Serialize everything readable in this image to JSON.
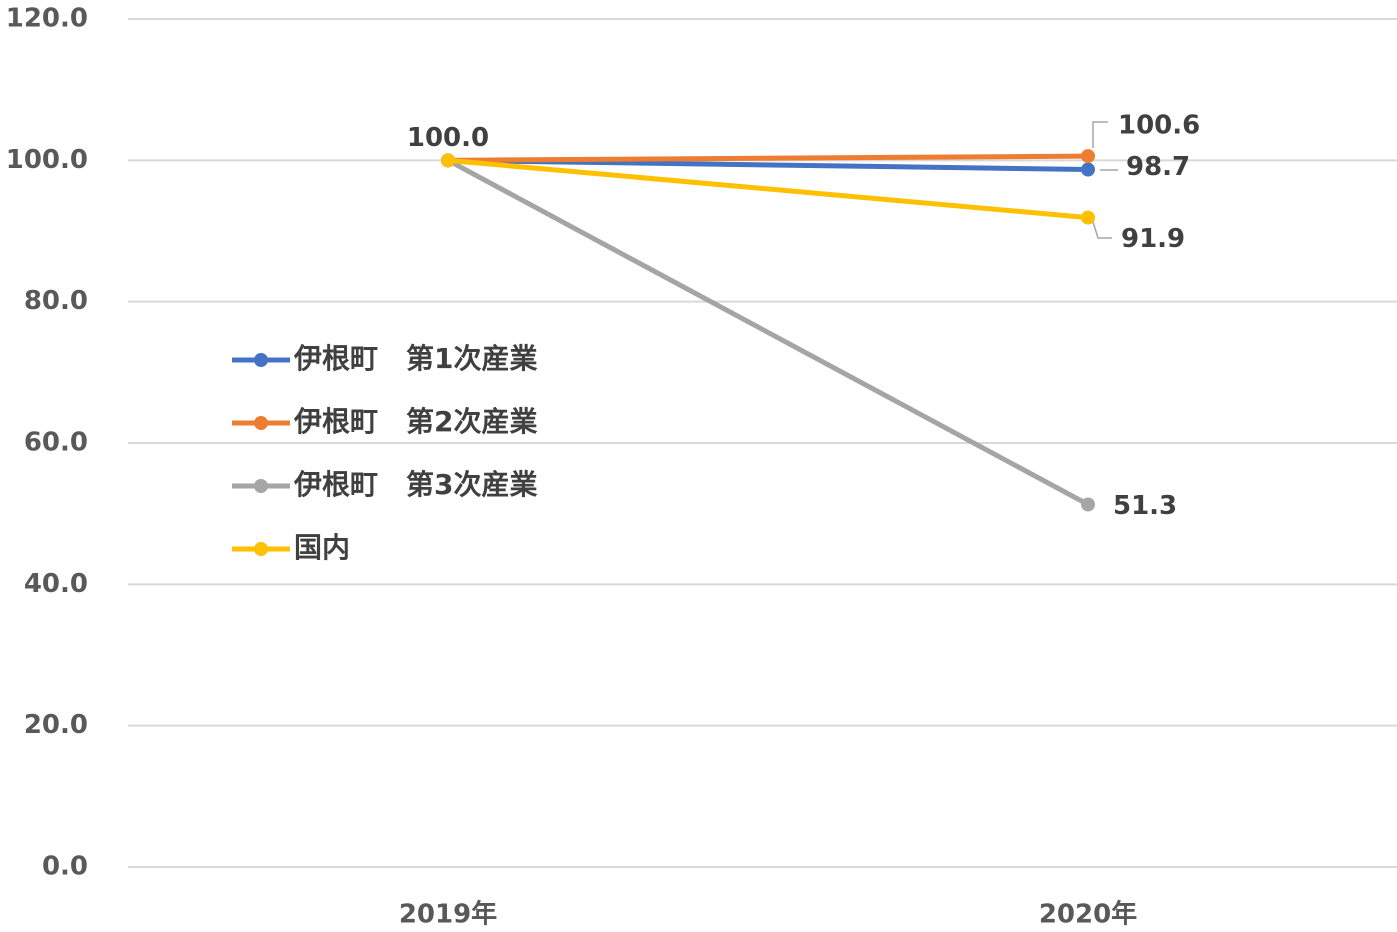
{
  "chart_data": {
    "type": "line",
    "categories": [
      "2019年",
      "2020年"
    ],
    "series": [
      {
        "name": "伊根町　第1次産業",
        "color": "#4472c4",
        "values": [
          100,
          98.7
        ],
        "value_labels": [
          "100.0",
          "98.7"
        ]
      },
      {
        "name": "伊根町　第2次産業",
        "color": "#ed7d31",
        "values": [
          100,
          100.6
        ],
        "value_labels": [
          null,
          "100.6"
        ]
      },
      {
        "name": "伊根町　第3次産業",
        "color": "#a5a5a5",
        "values": [
          100,
          51.3
        ],
        "value_labels": [
          null,
          "51.3"
        ]
      },
      {
        "name": "国内",
        "color": "#ffc000",
        "values": [
          100,
          91.9
        ],
        "value_labels": [
          null,
          "91.9"
        ]
      }
    ],
    "ylim": [
      0,
      120
    ],
    "yticks": [
      {
        "value": 0,
        "label": "0.0"
      },
      {
        "value": 20,
        "label": "20.0"
      },
      {
        "value": 40,
        "label": "40.0"
      },
      {
        "value": 60,
        "label": "60.0"
      },
      {
        "value": 80,
        "label": "80.0"
      },
      {
        "value": 100,
        "label": "100.0"
      },
      {
        "value": 120,
        "label": "120.0"
      }
    ],
    "grid": true,
    "legend": "left"
  }
}
